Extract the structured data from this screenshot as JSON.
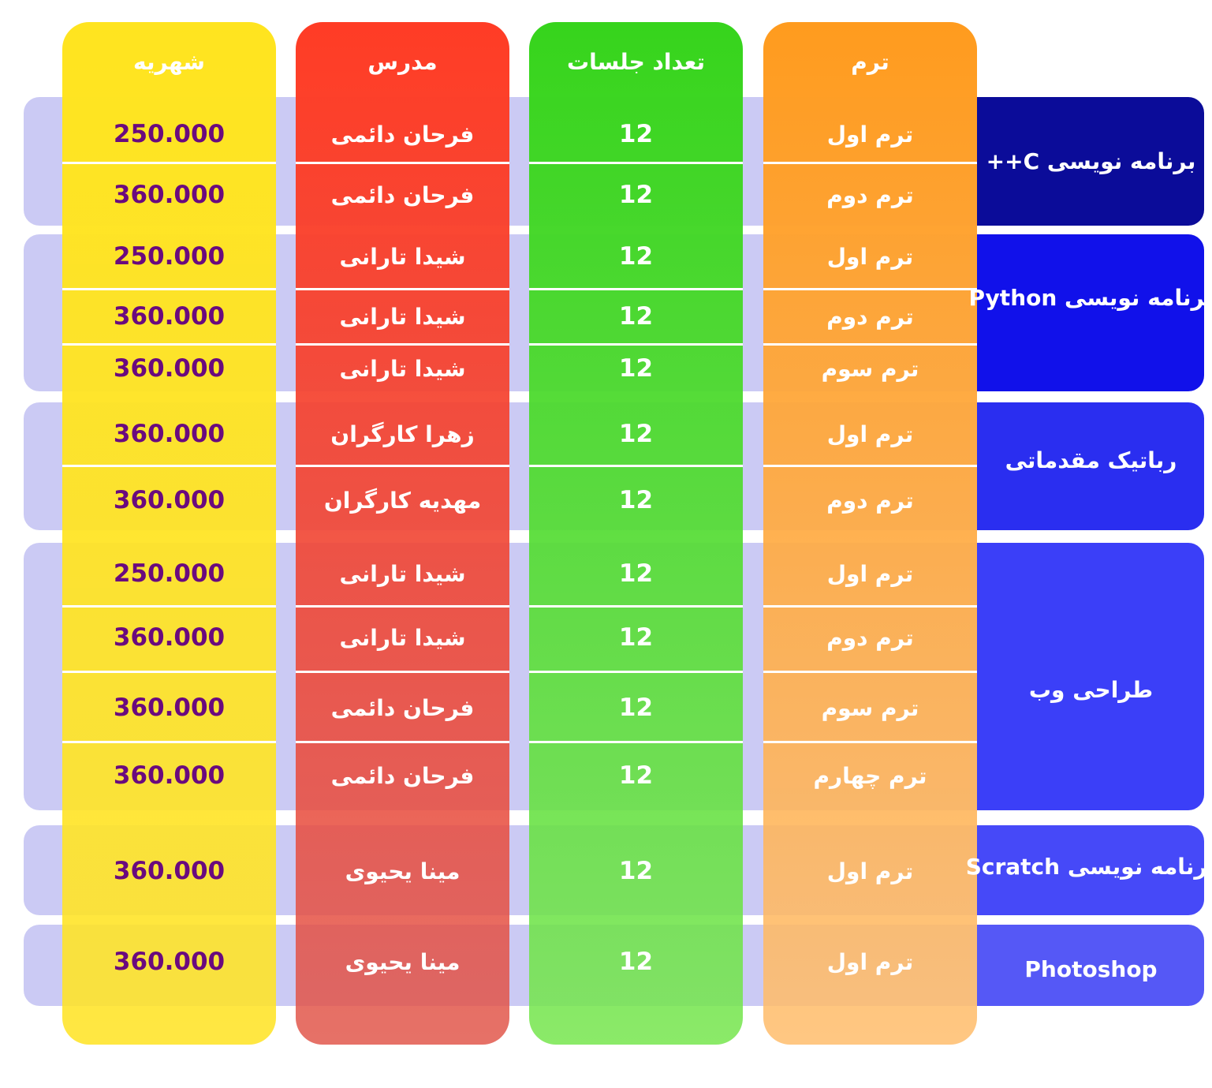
{
  "header": {
    "fee": "شهریه",
    "teacher": "مدرس",
    "sessions": "تعداد جلسات",
    "term": "ترم"
  },
  "colors": {
    "fee_text": "#6a0a7e",
    "fee_column": "#ffe41f",
    "teacher_column": "#ff3c25",
    "sessions_column": "#36d41c",
    "term_column": "#ff9b1e",
    "band_left": "#cbcaf4"
  },
  "courses": [
    {
      "name": "برنامه نویسی C++",
      "color": "#0b0c99",
      "rows": [
        {
          "term": "ترم اول",
          "sessions": "12",
          "teacher": "فرحان دائمی",
          "fee": "250.000"
        },
        {
          "term": "ترم دوم",
          "sessions": "12",
          "teacher": "فرحان دائمی",
          "fee": "360.000"
        }
      ]
    },
    {
      "name": "برنامه نویسی Python",
      "color": "#1111ea",
      "rows": [
        {
          "term": "ترم اول",
          "sessions": "12",
          "teacher": "شیدا تارانی",
          "fee": "250.000"
        },
        {
          "term": "ترم دوم",
          "sessions": "12",
          "teacher": "شیدا تارانی",
          "fee": "360.000"
        },
        {
          "term": "ترم سوم",
          "sessions": "12",
          "teacher": "شیدا تارانی",
          "fee": "360.000"
        }
      ]
    },
    {
      "name": "رباتیک مقدماتی",
      "color": "#2a2ef0",
      "rows": [
        {
          "term": "ترم اول",
          "sessions": "12",
          "teacher": "زهرا کارگران",
          "fee": "360.000"
        },
        {
          "term": "ترم دوم",
          "sessions": "12",
          "teacher": "مهدیه کارگران",
          "fee": "360.000"
        }
      ]
    },
    {
      "name": "طراحی وب",
      "color": "#3b3ff8",
      "rows": [
        {
          "term": "ترم اول",
          "sessions": "12",
          "teacher": "شیدا تارانی",
          "fee": "250.000"
        },
        {
          "term": "ترم دوم",
          "sessions": "12",
          "teacher": "شیدا تارانی",
          "fee": "360.000"
        },
        {
          "term": "ترم سوم",
          "sessions": "12",
          "teacher": "فرحان دائمی",
          "fee": "360.000"
        },
        {
          "term": "ترم چهارم",
          "sessions": "12",
          "teacher": "فرحان دائمی",
          "fee": "360.000"
        }
      ]
    },
    {
      "name": "برنامه نویسی Scratch",
      "color": "#4649f8",
      "rows": [
        {
          "term": "ترم اول",
          "sessions": "12",
          "teacher": "مینا یحیوی",
          "fee": "360.000"
        }
      ]
    },
    {
      "name": "Photoshop",
      "color": "#5558f6",
      "rows": [
        {
          "term": "ترم اول",
          "sessions": "12",
          "teacher": "مینا یحیوی",
          "fee": "360.000"
        }
      ]
    }
  ]
}
